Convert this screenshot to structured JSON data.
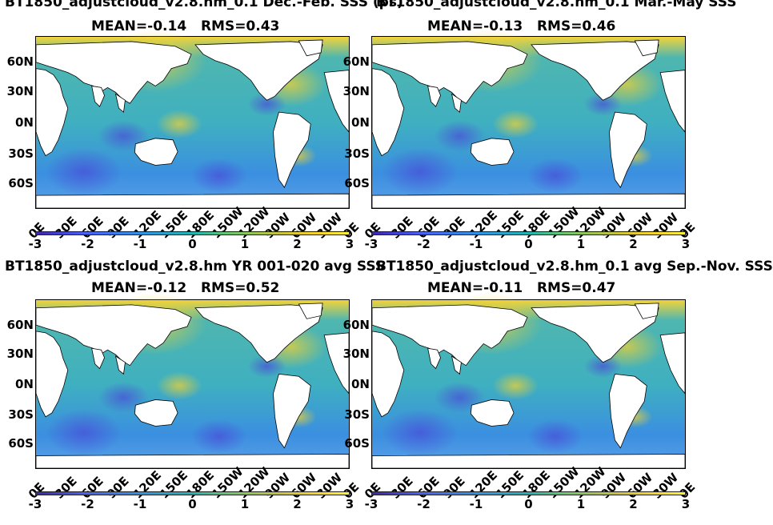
{
  "panels": [
    {
      "title": "BT1850_adjustcloud_v2.8.hm_0.1 Dec.-Feb. SSS (ps)",
      "mean": "MEAN=-0.14",
      "rms": "RMS=0.43"
    },
    {
      "title": "BT1850_adjustcloud_v2.8.hm_0.1 Mar.-May SSS",
      "mean": "MEAN=-0.13",
      "rms": "RMS=0.46"
    },
    {
      "title": "BT1850_adjustcloud_v2.8.hm YR 001-020 avg SSS",
      "mean": "MEAN=-0.12",
      "rms": "RMS=0.52"
    },
    {
      "title": "BT1850_adjustcloud_v2.8.hm_0.1 avg Sep.-Nov. SSS",
      "mean": "MEAN=-0.11",
      "rms": "RMS=0.47"
    }
  ],
  "lat_labels": [
    "60N",
    "30N",
    "0N",
    "30S",
    "60S"
  ],
  "lon_labels": [
    "0E",
    "30E",
    "60E",
    "90E",
    "120E",
    "150E",
    "180E",
    "150W",
    "120W",
    "90W",
    "60W",
    "30W",
    "0E"
  ],
  "colorbar_labels": [
    "-3",
    "-2",
    "-1",
    "0",
    "1",
    "2",
    "3"
  ],
  "colors": {
    "ocean": "#35a8c8",
    "land": "#ffffff",
    "high": "#f9d32a",
    "low": "#4a4ad8"
  }
}
